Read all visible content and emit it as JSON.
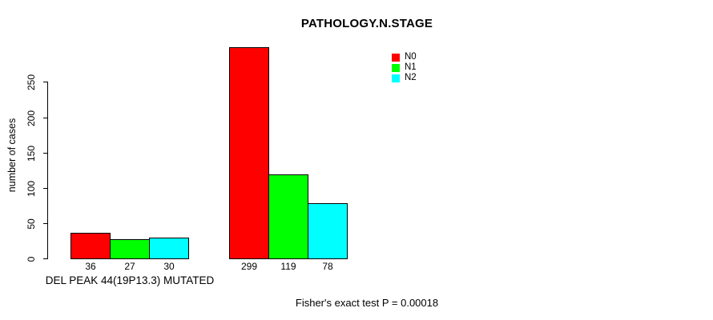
{
  "title": "PATHOLOGY.N.STAGE",
  "y_axis": {
    "label": "number of cases",
    "ticks": [
      "0",
      "50",
      "100",
      "150",
      "200",
      "250"
    ]
  },
  "footer": "Fisher's exact test P = 0.00018",
  "legend": {
    "items": [
      {
        "label": "N0",
        "color": "#FF0000"
      },
      {
        "label": "N1",
        "color": "#00FF00"
      },
      {
        "label": "N2",
        "color": "#00FFFF"
      }
    ]
  },
  "chart_data": {
    "type": "bar",
    "title": "PATHOLOGY.N.STAGE",
    "ylabel": "number of cases",
    "xlabel": "",
    "ylim": [
      0,
      250
    ],
    "yticks": [
      0,
      50,
      100,
      150,
      200,
      250
    ],
    "grid": false,
    "legend_position": "top-right",
    "categories": [
      "DEL PEAK 44(19P13.3) MUTATED",
      ""
    ],
    "series": [
      {
        "name": "N0",
        "color": "#FF0000",
        "values": [
          36,
          299
        ]
      },
      {
        "name": "N1",
        "color": "#00FF00",
        "values": [
          27,
          119
        ]
      },
      {
        "name": "N2",
        "color": "#00FFFF",
        "values": [
          30,
          78
        ]
      }
    ],
    "bar_value_labels": [
      [
        "36",
        "27",
        "30"
      ],
      [
        "299",
        "119",
        "78"
      ]
    ],
    "annotation": "Fisher's exact test P = 0.00018"
  }
}
